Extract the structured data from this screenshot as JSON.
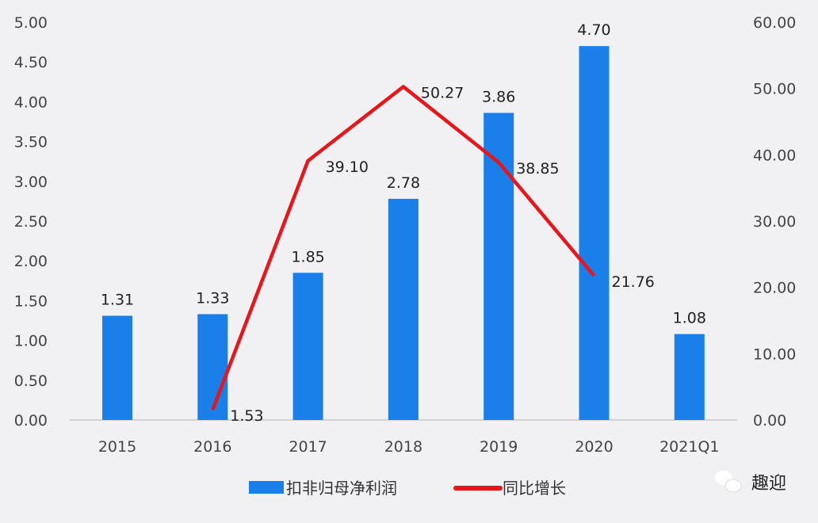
{
  "chart_data": {
    "type": "bar+line",
    "categories": [
      "2015",
      "2016",
      "2017",
      "2018",
      "2019",
      "2020",
      "2021Q1"
    ],
    "series": [
      {
        "name": "扣非归母净利润",
        "type": "bar",
        "axis": "left",
        "color": "#1a7fe8",
        "values": [
          1.31,
          1.33,
          1.85,
          2.78,
          3.86,
          4.7,
          1.08
        ],
        "labels": [
          "1.31",
          "1.33",
          "1.85",
          "2.78",
          "3.86",
          "4.70",
          "1.08"
        ]
      },
      {
        "name": "同比增长",
        "type": "line",
        "axis": "right",
        "color": "#e8151b",
        "values": [
          null,
          1.53,
          39.1,
          50.27,
          38.85,
          21.76,
          null
        ],
        "labels": [
          null,
          "1.53",
          "39.10",
          "50.27",
          "38.85",
          "21.76",
          null
        ]
      }
    ],
    "y_left": {
      "range": [
        0,
        5
      ],
      "ticks": [
        "0.00",
        "0.50",
        "1.00",
        "1.50",
        "2.00",
        "2.50",
        "3.00",
        "3.50",
        "4.00",
        "4.50",
        "5.00"
      ]
    },
    "y_right": {
      "range": [
        0,
        60
      ],
      "ticks": [
        "0.00",
        "10.00",
        "20.00",
        "30.00",
        "40.00",
        "50.00",
        "60.00"
      ]
    },
    "legend_position": "bottom",
    "grid": false
  },
  "watermark": "趣迎"
}
